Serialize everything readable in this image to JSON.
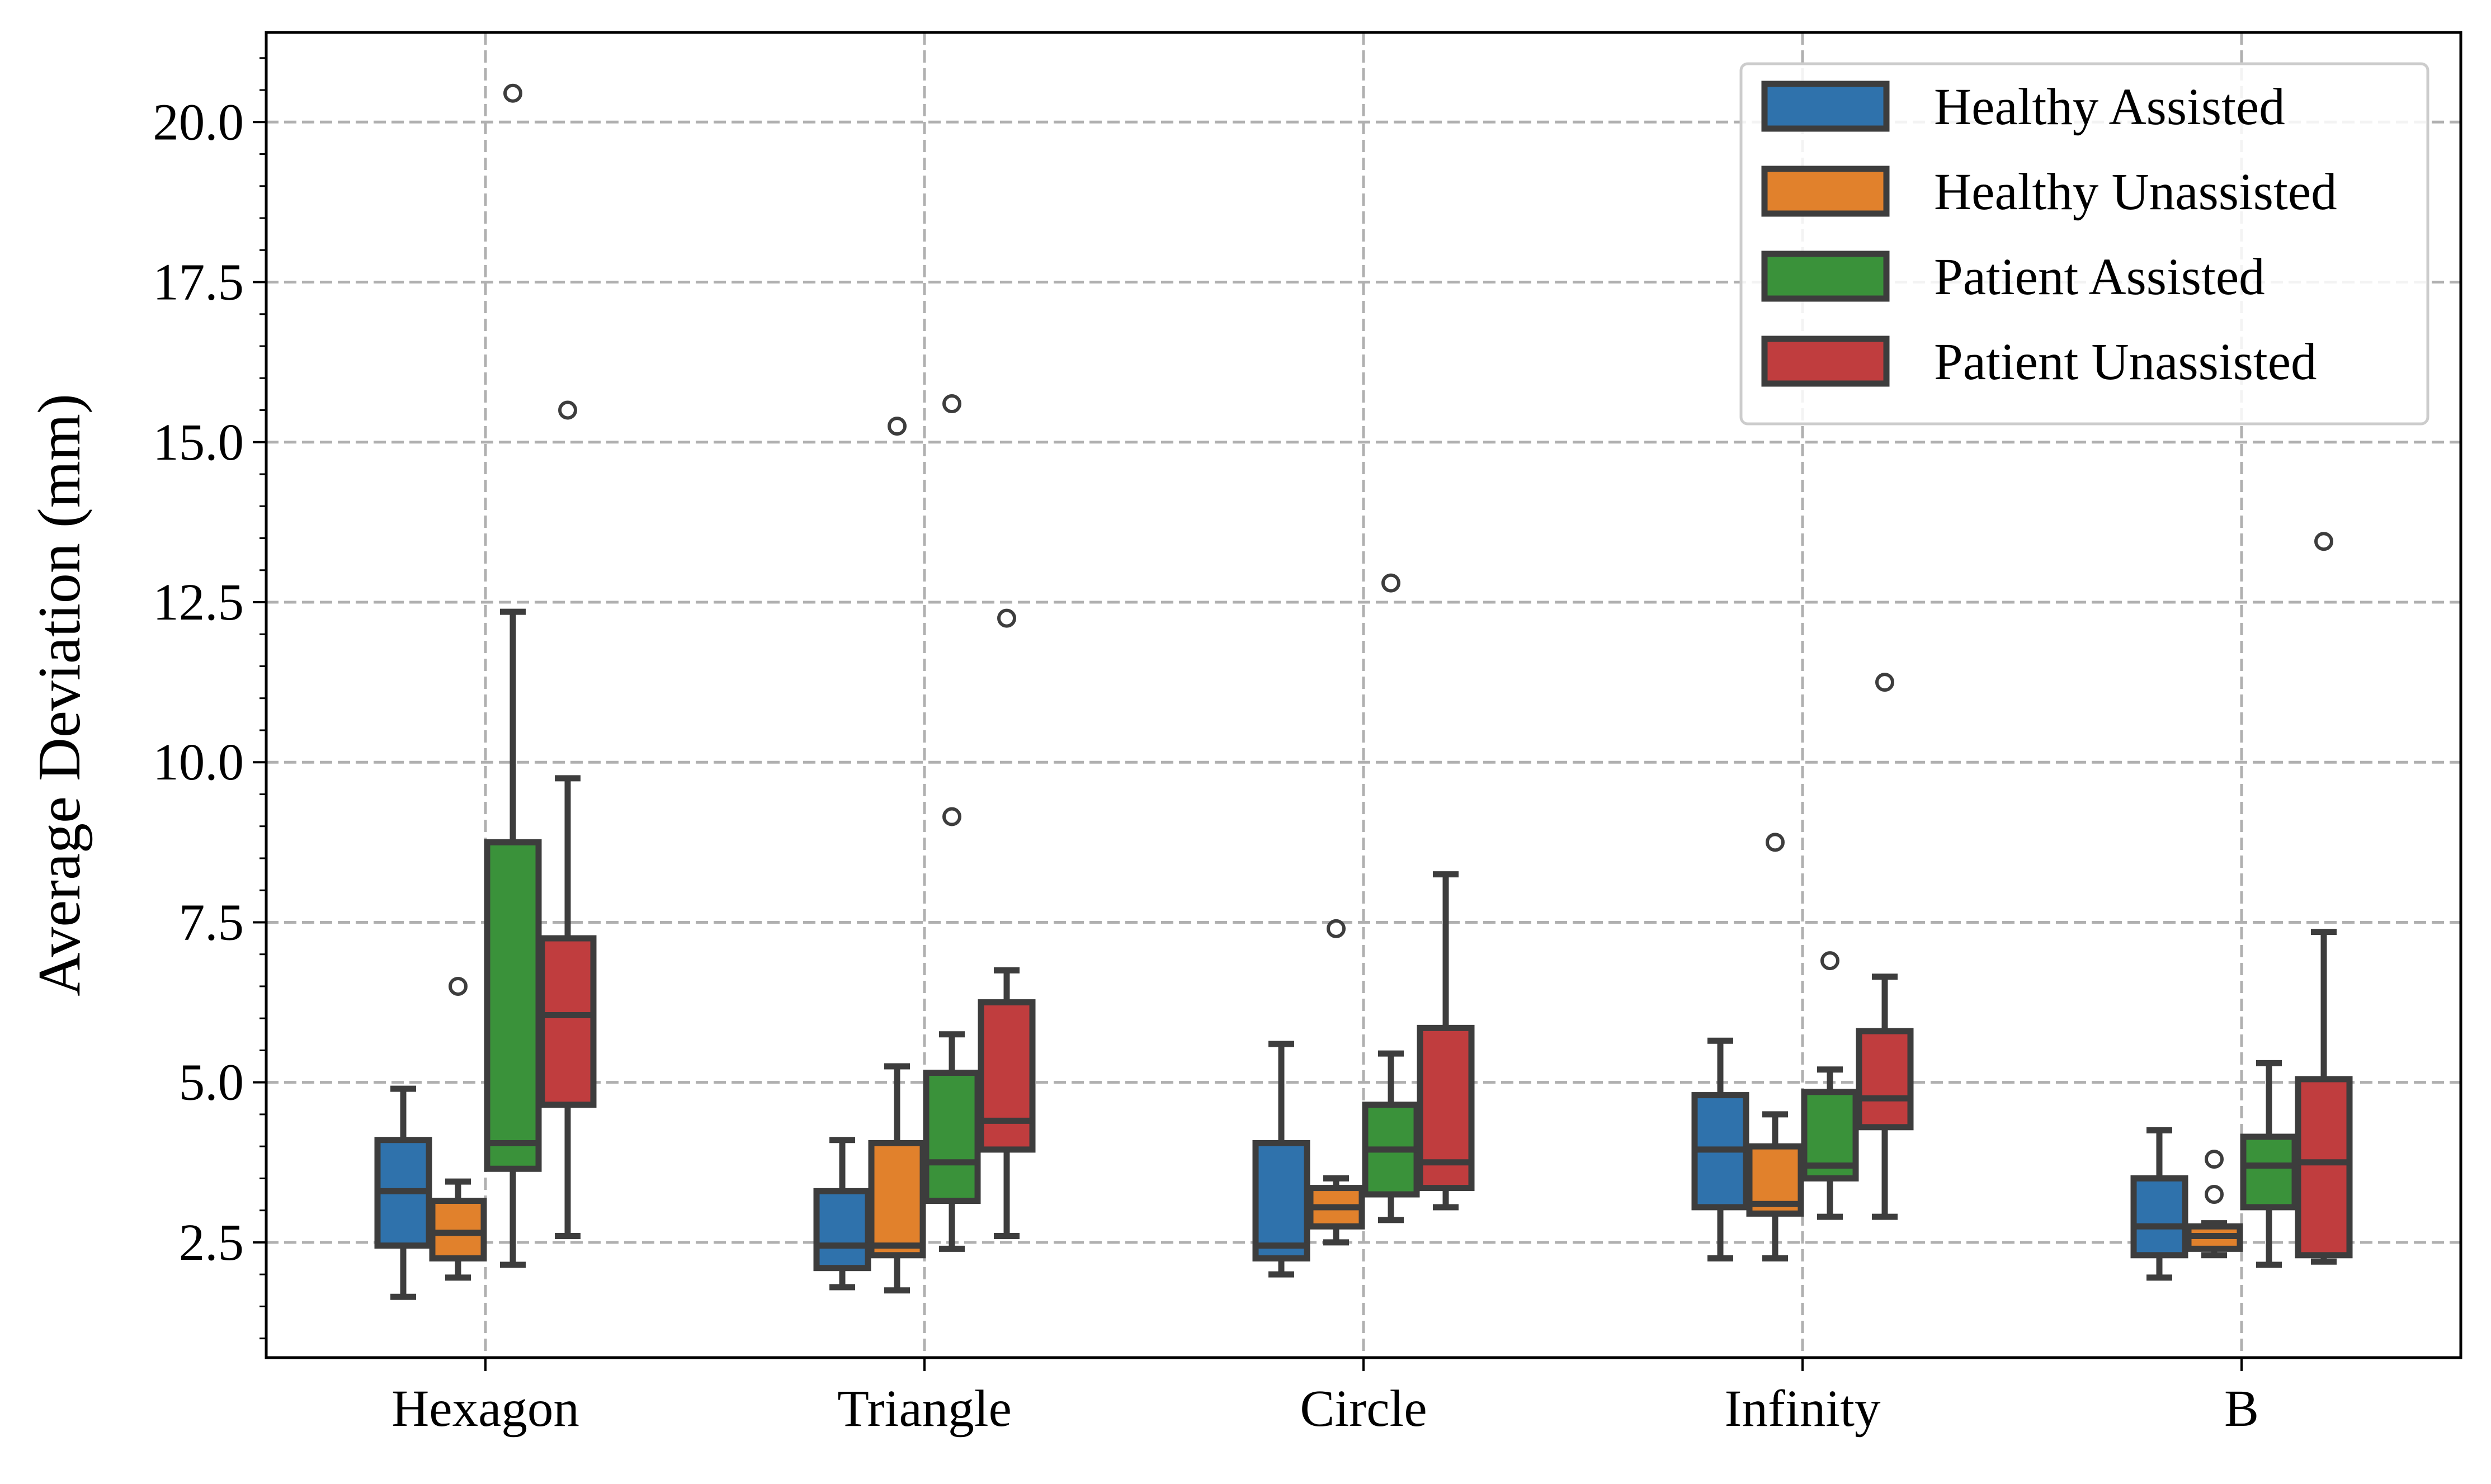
{
  "chart_data": {
    "type": "box",
    "title": "",
    "xlabel": "",
    "ylabel": "Average Deviation (mm)",
    "ylim": [
      0.7,
      21.4
    ],
    "yticks": [
      2.5,
      5.0,
      7.5,
      10.0,
      12.5,
      15.0,
      17.5,
      20.0
    ],
    "ytick_labels": [
      "2.5",
      "5.0",
      "7.5",
      "10.0",
      "12.5",
      "15.0",
      "17.5",
      "20.0"
    ],
    "grid": true,
    "legend_position": "top-right",
    "categories": [
      "Hexagon",
      "Triangle",
      "Circle",
      "Infinity",
      "B"
    ],
    "series": [
      {
        "name": "Healthy Assisted",
        "color": "#2f72ac",
        "boxes": [
          {
            "whislo": 1.65,
            "q1": 2.45,
            "med": 3.3,
            "q3": 4.1,
            "whishi": 4.9,
            "fliers": []
          },
          {
            "whislo": 1.8,
            "q1": 2.1,
            "med": 2.45,
            "q3": 3.3,
            "whishi": 4.1,
            "fliers": []
          },
          {
            "whislo": 2.0,
            "q1": 2.25,
            "med": 2.45,
            "q3": 4.05,
            "whishi": 5.6,
            "fliers": []
          },
          {
            "whislo": 2.25,
            "q1": 3.05,
            "med": 3.95,
            "q3": 4.8,
            "whishi": 5.65,
            "fliers": []
          },
          {
            "whislo": 1.95,
            "q1": 2.3,
            "med": 2.75,
            "q3": 3.5,
            "whishi": 4.25,
            "fliers": []
          }
        ]
      },
      {
        "name": "Healthy Unassisted",
        "color": "#e1812c",
        "boxes": [
          {
            "whislo": 1.95,
            "q1": 2.25,
            "med": 2.65,
            "q3": 3.15,
            "whishi": 3.45,
            "fliers": [
              6.5
            ]
          },
          {
            "whislo": 1.75,
            "q1": 2.3,
            "med": 2.45,
            "q3": 4.05,
            "whishi": 5.25,
            "fliers": [
              15.25
            ]
          },
          {
            "whislo": 2.5,
            "q1": 2.75,
            "med": 3.05,
            "q3": 3.35,
            "whishi": 3.5,
            "fliers": [
              7.4
            ]
          },
          {
            "whislo": 2.25,
            "q1": 2.95,
            "med": 3.1,
            "q3": 4.0,
            "whishi": 4.5,
            "fliers": [
              8.75
            ]
          },
          {
            "whislo": 2.3,
            "q1": 2.4,
            "med": 2.6,
            "q3": 2.75,
            "whishi": 2.8,
            "fliers": [
              3.25,
              3.8
            ]
          }
        ]
      },
      {
        "name": "Patient Assisted",
        "color": "#3a923a",
        "boxes": [
          {
            "whislo": 2.15,
            "q1": 3.65,
            "med": 4.05,
            "q3": 8.75,
            "whishi": 12.35,
            "fliers": [
              20.45
            ]
          },
          {
            "whislo": 2.4,
            "q1": 3.15,
            "med": 3.75,
            "q3": 5.15,
            "whishi": 5.75,
            "fliers": [
              9.15,
              15.6
            ]
          },
          {
            "whislo": 2.85,
            "q1": 3.25,
            "med": 3.95,
            "q3": 4.65,
            "whishi": 5.45,
            "fliers": [
              12.8
            ]
          },
          {
            "whislo": 2.9,
            "q1": 3.5,
            "med": 3.7,
            "q3": 4.85,
            "whishi": 5.2,
            "fliers": [
              6.9
            ]
          },
          {
            "whislo": 2.15,
            "q1": 3.05,
            "med": 3.7,
            "q3": 4.15,
            "whishi": 5.3,
            "fliers": []
          }
        ]
      },
      {
        "name": "Patient Unassisted",
        "color": "#c03d3e",
        "boxes": [
          {
            "whislo": 2.6,
            "q1": 4.65,
            "med": 6.05,
            "q3": 7.25,
            "whishi": 9.75,
            "fliers": [
              15.5
            ]
          },
          {
            "whislo": 2.6,
            "q1": 3.95,
            "med": 4.4,
            "q3": 6.25,
            "whishi": 6.75,
            "fliers": [
              12.25
            ]
          },
          {
            "whislo": 3.05,
            "q1": 3.35,
            "med": 3.75,
            "q3": 5.85,
            "whishi": 8.25,
            "fliers": []
          },
          {
            "whislo": 2.9,
            "q1": 4.3,
            "med": 4.75,
            "q3": 5.8,
            "whishi": 6.65,
            "fliers": [
              11.25
            ]
          },
          {
            "whislo": 2.2,
            "q1": 2.3,
            "med": 3.75,
            "q3": 5.05,
            "whishi": 7.35,
            "fliers": [
              13.45
            ]
          }
        ]
      }
    ]
  }
}
